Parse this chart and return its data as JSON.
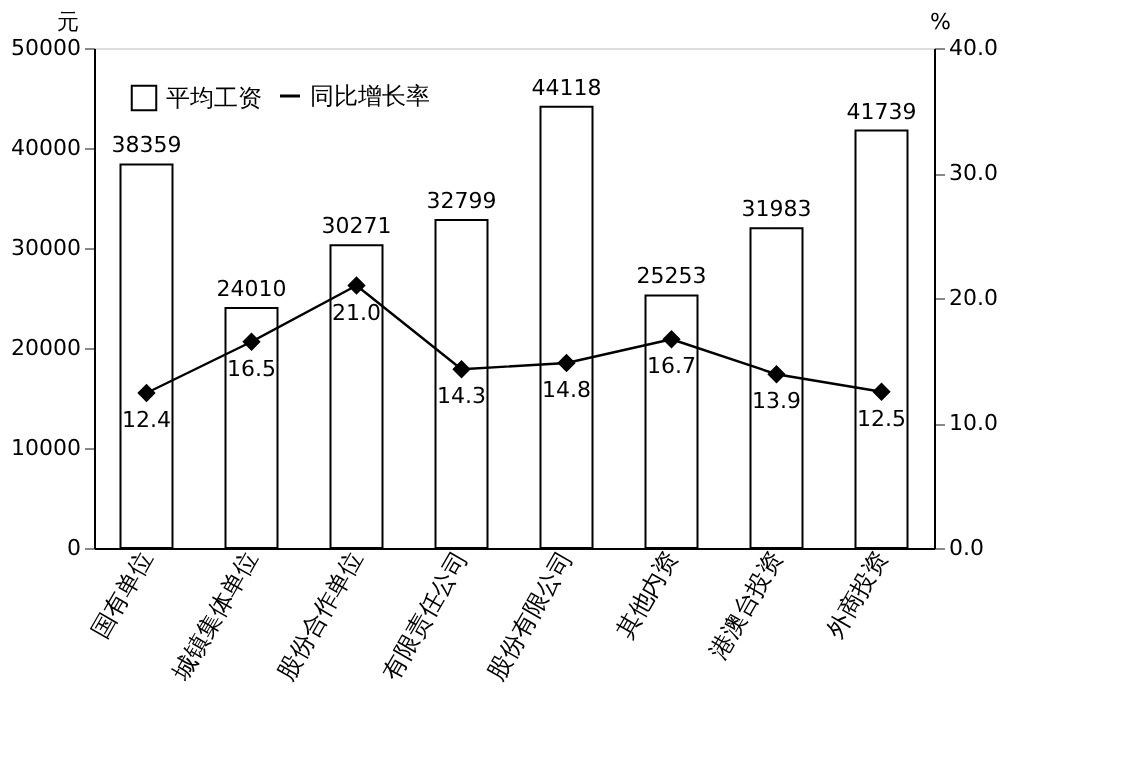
{
  "chart_data": {
    "type": "bar",
    "categories": [
      "国有单位",
      "城镇集体单位",
      "股份合作单位",
      "有限责任公司",
      "股份有限公司",
      "其他内资",
      "港澳台投资",
      "外商投资"
    ],
    "series": [
      {
        "name": "平均工资",
        "color": "#ffffff",
        "values": [
          38359,
          24010,
          30271,
          32799,
          44118,
          25253,
          31983,
          41739
        ]
      },
      {
        "name": "同比增长率",
        "type": "line",
        "axis": "y2",
        "color": "#000000",
        "values": [
          12.4,
          16.5,
          21.0,
          14.3,
          14.8,
          16.7,
          13.9,
          12.5
        ],
        "value_labels": [
          "12.4",
          "16.5",
          "21.0",
          "14.3",
          "14.8",
          "16.7",
          "13.9",
          "12.5"
        ]
      }
    ],
    "ylabel": "元",
    "y2label": "%",
    "ylim": [
      0,
      50000
    ],
    "yticks": [
      0,
      10000,
      20000,
      30000,
      40000,
      50000
    ],
    "y2lim": [
      0,
      40
    ],
    "y2ticks": [
      {
        "value": 0,
        "label": "0.0"
      },
      {
        "value": 10,
        "label": "10.0"
      },
      {
        "value": 20,
        "label": "20.0"
      },
      {
        "value": 30,
        "label": "30.0"
      },
      {
        "value": 40,
        "label": "40.0"
      }
    ],
    "data_labels": true,
    "marker": "diamond",
    "line_style": "solid",
    "legend": "top left",
    "grid": false
  }
}
